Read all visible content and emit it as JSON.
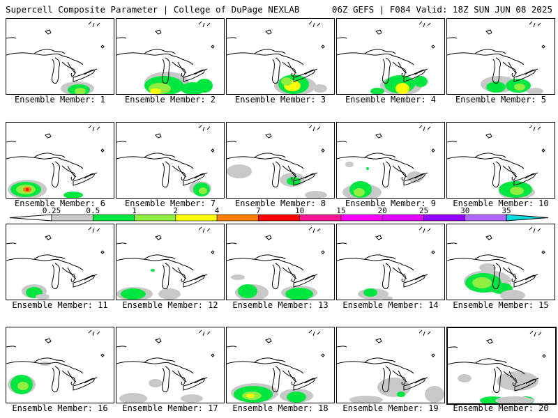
{
  "header": {
    "left_title": "Supercell Composite Parameter | College of DuPage NEXLAB",
    "right_title": "06Z GEFS | F084 Valid: 18Z SUN JUN 08 2025"
  },
  "panels": [
    {
      "member": 1,
      "label": "Ensemble Member: 1",
      "selected": false
    },
    {
      "member": 2,
      "label": "Ensemble Member: 2",
      "selected": false
    },
    {
      "member": 3,
      "label": "Ensemble Member: 3",
      "selected": false
    },
    {
      "member": 4,
      "label": "Ensemble Member: 4",
      "selected": false
    },
    {
      "member": 5,
      "label": "Ensemble Member: 5",
      "selected": false
    },
    {
      "member": 6,
      "label": "Ensemble Member: 6",
      "selected": false
    },
    {
      "member": 7,
      "label": "Ensemble Member: 7",
      "selected": false
    },
    {
      "member": 8,
      "label": "Ensemble Member: 8",
      "selected": false
    },
    {
      "member": 9,
      "label": "Ensemble Member: 9",
      "selected": false
    },
    {
      "member": 10,
      "label": "Ensemble Member: 10",
      "selected": false
    },
    {
      "member": 11,
      "label": "Ensemble Member: 11",
      "selected": false
    },
    {
      "member": 12,
      "label": "Ensemble Member: 12",
      "selected": false
    },
    {
      "member": 13,
      "label": "Ensemble Member: 13",
      "selected": false
    },
    {
      "member": 14,
      "label": "Ensemble Member: 14",
      "selected": false
    },
    {
      "member": 15,
      "label": "Ensemble Member: 15",
      "selected": false
    },
    {
      "member": 16,
      "label": "Ensemble Member: 16",
      "selected": false
    },
    {
      "member": 17,
      "label": "Ensemble Member: 17",
      "selected": false
    },
    {
      "member": 18,
      "label": "Ensemble Member: 18",
      "selected": false
    },
    {
      "member": 19,
      "label": "Ensemble Member: 19",
      "selected": false
    },
    {
      "member": 20,
      "label": "Ensemble Member: 20",
      "selected": true
    }
  ],
  "colorbar": {
    "thresholds": [
      "0.25",
      "0.5",
      "1",
      "2",
      "4",
      "7",
      "10",
      "15",
      "20",
      "25",
      "30",
      "35"
    ],
    "colors": [
      "#c8c8c8",
      "#00e640",
      "#90ee40",
      "#ffff00",
      "#ff8000",
      "#ff0000",
      "#ff1493",
      "#ff00ff",
      "#e000ff",
      "#9600ff",
      "#b266ff",
      "#00e0e0"
    ]
  },
  "shading_colors": {
    "light": "#c8c8c8",
    "green": "#00e640",
    "lightgreen": "#90ee40",
    "yellow": "#ffff00",
    "orange": "#ff8000",
    "red": "#ff0000"
  }
}
